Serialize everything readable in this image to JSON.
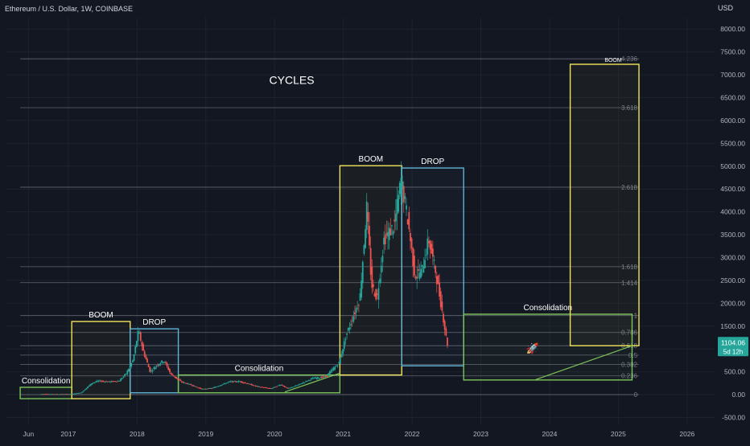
{
  "header": {
    "symbol_line": "Ethereum / U.S. Dollar, 1W, COINBASE",
    "currency": "USD"
  },
  "colors": {
    "background": "#131722",
    "axis_text": "#b2b5be",
    "grid": "#1e222d",
    "up": "#26a69a",
    "down": "#ef5350",
    "boom_box": "#f0e35a",
    "drop_box": "#5fb3d4",
    "consolidation_box": "#7cc45a",
    "fib_line": "#787b86",
    "price_tag": "#26a69a"
  },
  "chart_data": {
    "type": "candlestick",
    "title": "CYCLES",
    "y_axis": {
      "ticks": [
        "8000.00",
        "7500.00",
        "7000.00",
        "6500.00",
        "6000.00",
        "5500.00",
        "5000.00",
        "4500.00",
        "4000.00",
        "3500.00",
        "3000.00",
        "2500.00",
        "2000.00",
        "1500.00",
        "1000.00",
        "500.00",
        "0.00",
        "-500.00"
      ],
      "tick_values": [
        8000,
        7500,
        7000,
        6500,
        6000,
        5500,
        5000,
        4500,
        4000,
        3500,
        3000,
        2500,
        2000,
        1500,
        1000,
        500,
        0,
        -500
      ],
      "ylim": [
        -650,
        8250
      ],
      "position": "right"
    },
    "x_axis": {
      "ticks": [
        "Jun",
        "2017",
        "2018",
        "2019",
        "2020",
        "2021",
        "2022",
        "2023",
        "2024",
        "2025",
        "2026"
      ],
      "tick_values": [
        2016.42,
        2017.0,
        2018.0,
        2019.0,
        2020.0,
        2021.0,
        2022.0,
        2023.0,
        2024.0,
        2025.0,
        2026.0
      ],
      "xlim": [
        2016.1,
        2026.4
      ]
    },
    "price_series": {
      "name": "ETHUSD",
      "points": [
        [
          2016.6,
          12
        ],
        [
          2016.9,
          9
        ],
        [
          2017.05,
          10
        ],
        [
          2017.2,
          45
        ],
        [
          2017.35,
          250
        ],
        [
          2017.45,
          300
        ],
        [
          2017.6,
          280
        ],
        [
          2017.75,
          300
        ],
        [
          2017.85,
          460
        ],
        [
          2017.95,
          750
        ],
        [
          2018.03,
          1400
        ],
        [
          2018.1,
          950
        ],
        [
          2018.2,
          500
        ],
        [
          2018.3,
          650
        ],
        [
          2018.4,
          750
        ],
        [
          2018.5,
          450
        ],
        [
          2018.65,
          280
        ],
        [
          2018.8,
          210
        ],
        [
          2018.95,
          120
        ],
        [
          2019.1,
          140
        ],
        [
          2019.35,
          280
        ],
        [
          2019.5,
          290
        ],
        [
          2019.75,
          180
        ],
        [
          2019.95,
          130
        ],
        [
          2020.1,
          220
        ],
        [
          2020.2,
          130
        ],
        [
          2020.35,
          210
        ],
        [
          2020.55,
          350
        ],
        [
          2020.75,
          390
        ],
        [
          2020.95,
          700
        ],
        [
          2021.05,
          1300
        ],
        [
          2021.15,
          1700
        ],
        [
          2021.25,
          2100
        ],
        [
          2021.35,
          4100
        ],
        [
          2021.42,
          2400
        ],
        [
          2021.5,
          2100
        ],
        [
          2021.6,
          3400
        ],
        [
          2021.75,
          3700
        ],
        [
          2021.85,
          4700
        ],
        [
          2021.95,
          3800
        ],
        [
          2022.05,
          2600
        ],
        [
          2022.15,
          2700
        ],
        [
          2022.25,
          3400
        ],
        [
          2022.35,
          2700
        ],
        [
          2022.45,
          1800
        ],
        [
          2022.52,
          1104
        ]
      ],
      "last_price": "1104.06",
      "countdown": "5d 12h"
    },
    "fib_levels": [
      {
        "label": "4.236",
        "value": 7350
      },
      {
        "label": "3.618",
        "value": 6280
      },
      {
        "label": "2.618",
        "value": 4540
      },
      {
        "label": "1.618",
        "value": 2800
      },
      {
        "label": "1.414",
        "value": 2450
      },
      {
        "label": "1",
        "value": 1730
      },
      {
        "label": "0.786",
        "value": 1360
      },
      {
        "label": "0.618",
        "value": 1070
      },
      {
        "label": "0.5",
        "value": 865
      },
      {
        "label": "0.382",
        "value": 660
      },
      {
        "label": "0.236",
        "value": 410
      },
      {
        "label": "0",
        "value": 0
      }
    ],
    "fib_x_range": [
      2016.3,
      2025.3
    ],
    "annotations": [
      {
        "kind": "box",
        "role": "consolidation",
        "x": [
          2016.3,
          2017.05
        ],
        "y": [
          -90,
          160
        ],
        "label": "Consolidation",
        "label_pos": "top"
      },
      {
        "kind": "box",
        "role": "boom",
        "x": [
          2017.05,
          2017.9
        ],
        "y": [
          -90,
          1600
        ],
        "label": "BOOM",
        "label_pos": "top"
      },
      {
        "kind": "box",
        "role": "drop",
        "x": [
          2017.9,
          2018.6
        ],
        "y": [
          40,
          1440
        ],
        "label": "DROP",
        "label_pos": "top"
      },
      {
        "kind": "box",
        "role": "consolidation",
        "x": [
          2018.6,
          2020.95
        ],
        "y": [
          40,
          430
        ],
        "label": "Consolidation",
        "label_pos": "top"
      },
      {
        "kind": "box",
        "role": "boom",
        "x": [
          2020.95,
          2021.85
        ],
        "y": [
          430,
          5010
        ],
        "label": "BOOM",
        "label_pos": "top"
      },
      {
        "kind": "box",
        "role": "drop",
        "x": [
          2021.85,
          2022.75
        ],
        "y": [
          630,
          4960
        ],
        "label": "DROP",
        "label_pos": "top"
      },
      {
        "kind": "box",
        "role": "consolidation",
        "x": [
          2022.75,
          2025.2
        ],
        "y": [
          320,
          1760
        ],
        "label": "Consolidation",
        "label_pos": "top"
      },
      {
        "kind": "box",
        "role": "boom",
        "x": [
          2024.3,
          2025.3
        ],
        "y": [
          1070,
          7230
        ],
        "label": "BOOM",
        "label_pos": "top-right-inside"
      }
    ],
    "trend_lines": [
      {
        "from": [
          2020.15,
          60
        ],
        "to": [
          2020.95,
          470
        ]
      },
      {
        "from": [
          2023.8,
          330
        ],
        "to": [
          2025.2,
          1070
        ]
      }
    ],
    "rocket_marker": {
      "icon": "rocket-icon",
      "x": 2023.75,
      "y": 1020
    }
  }
}
